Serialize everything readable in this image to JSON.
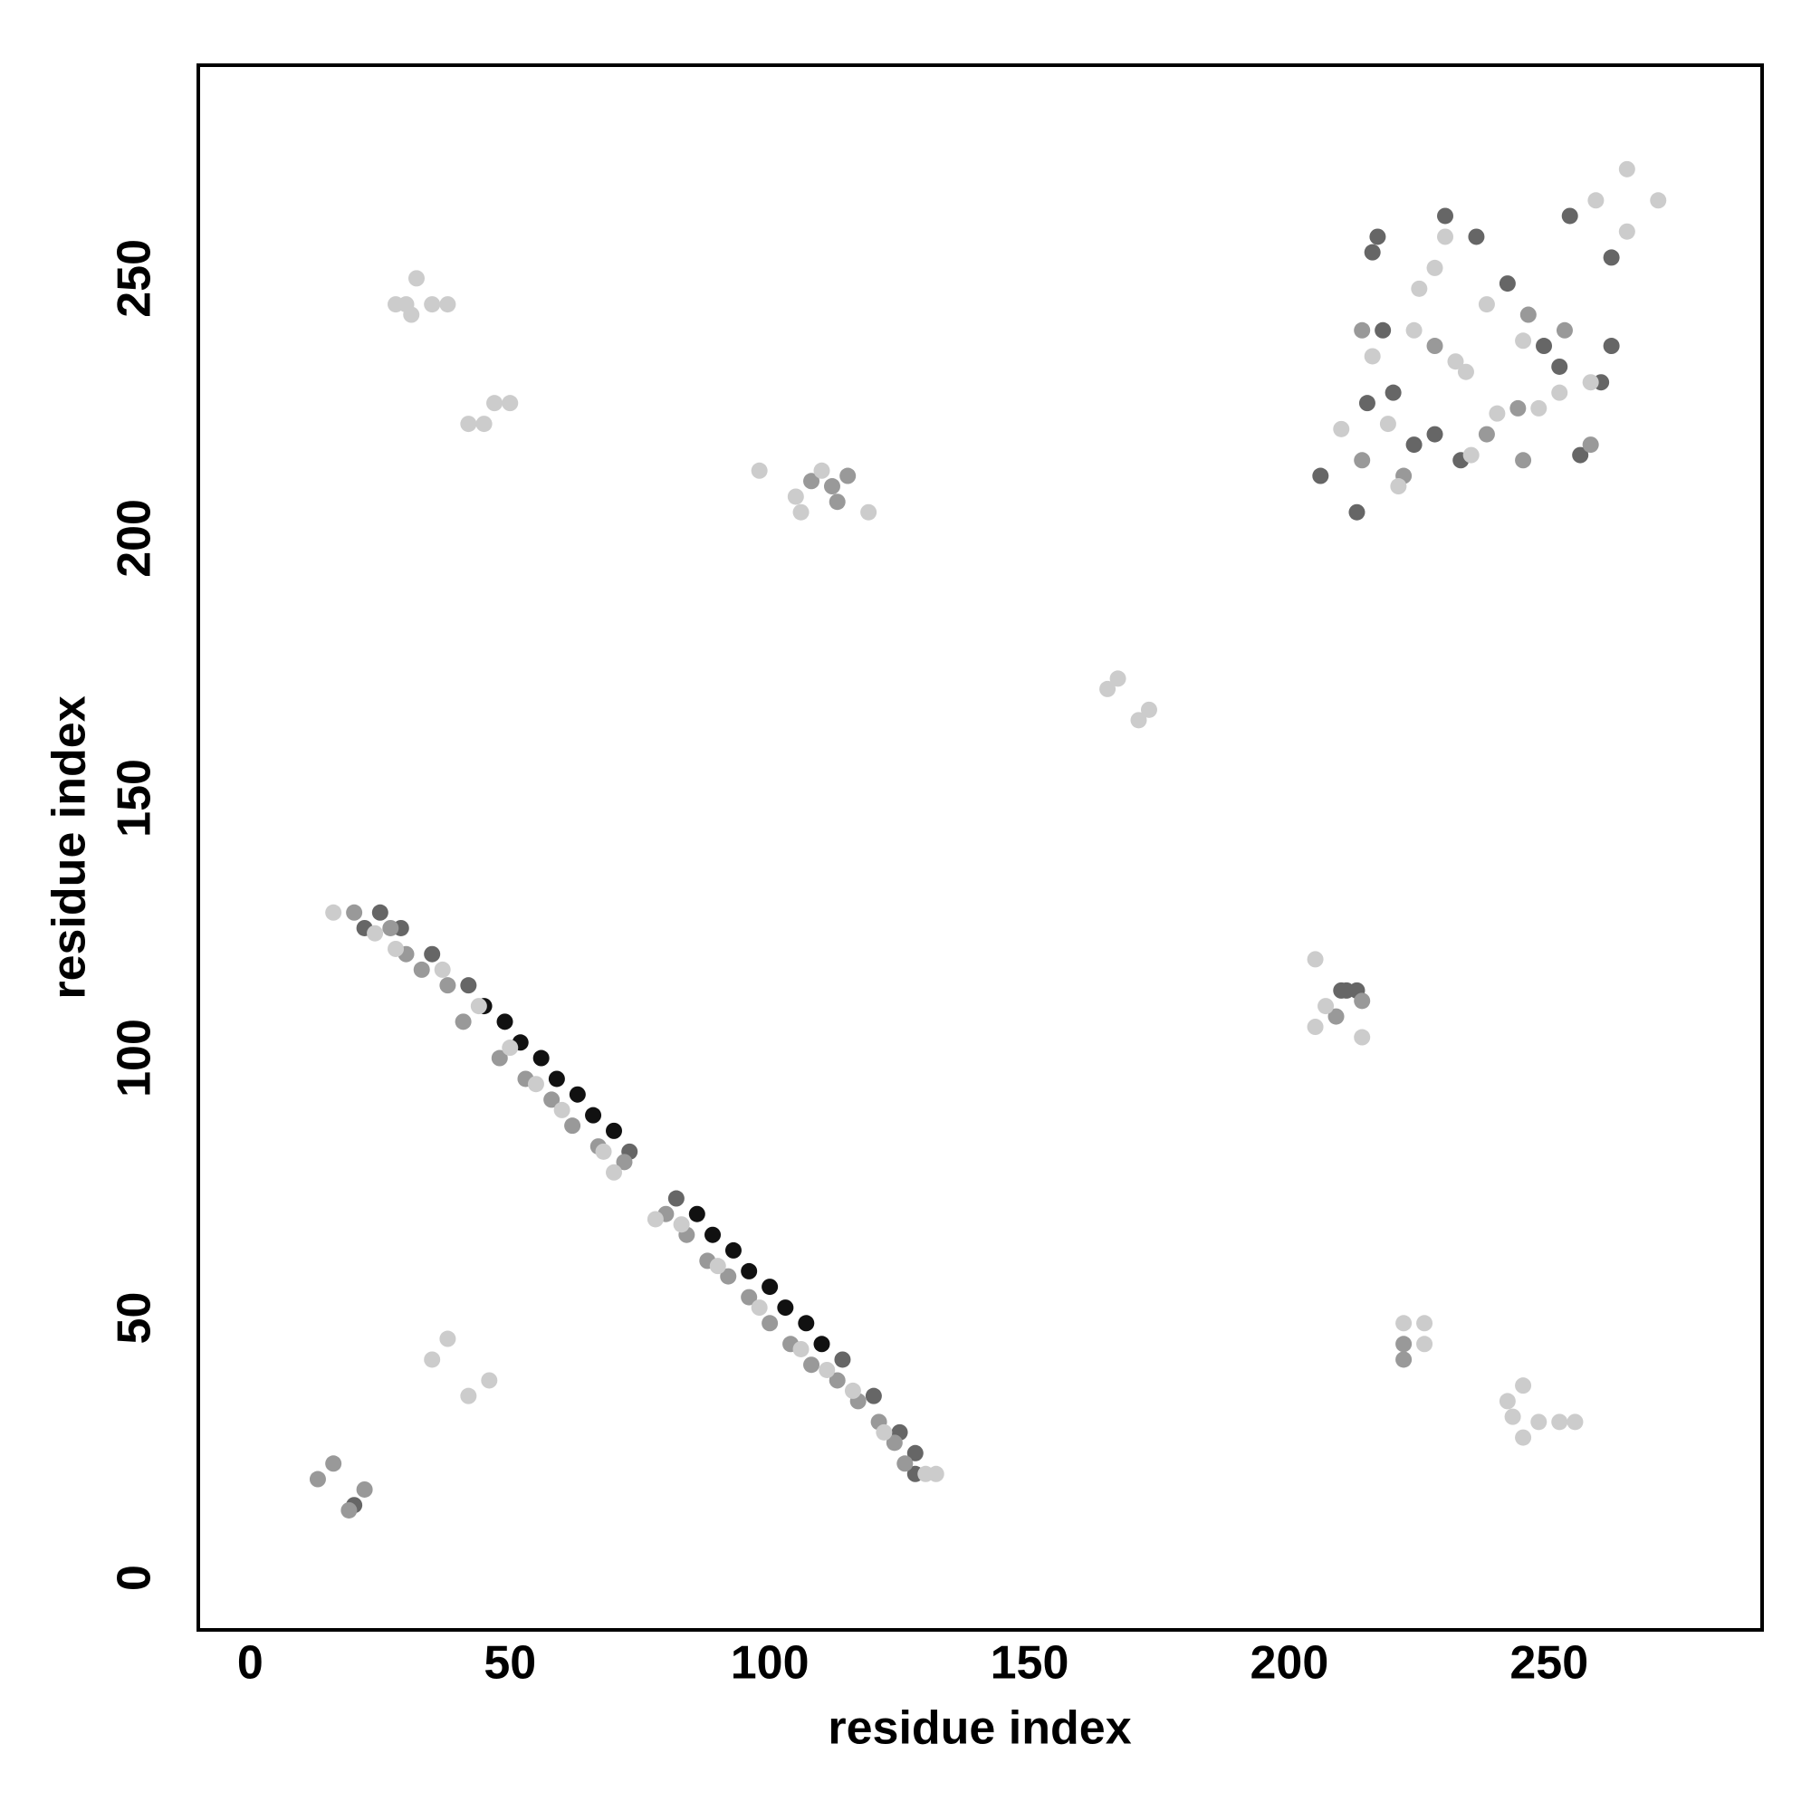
{
  "chart_data": {
    "type": "scatter",
    "xlabel": "residue index",
    "ylabel": "residue index",
    "xlim": [
      -10,
      291
    ],
    "ylim": [
      -10,
      291
    ],
    "xticks": [
      0,
      50,
      100,
      150,
      200,
      250
    ],
    "yticks": [
      0,
      50,
      100,
      150,
      200,
      250
    ],
    "grid": false,
    "series": [
      {
        "color": "#111111",
        "x": [
          45,
          49,
          52,
          56,
          59,
          63,
          66,
          70,
          86,
          89,
          93,
          96,
          100,
          103,
          107,
          110
        ],
        "y": [
          110,
          107,
          103,
          100,
          96,
          93,
          89,
          86,
          70,
          66,
          63,
          59,
          56,
          52,
          49,
          45
        ]
      },
      {
        "color": "#666666",
        "x": [
          254,
          262,
          22,
          25,
          29,
          35,
          42,
          73,
          82,
          114,
          120,
          125,
          128,
          128,
          216,
          217,
          213,
          230,
          236,
          242,
          218,
          215,
          220,
          224,
          228,
          233,
          249,
          252,
          256,
          260,
          262,
          206,
          210,
          211,
          213,
          20
        ],
        "y": [
          262,
          254,
          125,
          128,
          125,
          120,
          114,
          82,
          73,
          42,
          35,
          28,
          20,
          24,
          255,
          258,
          205,
          262,
          258,
          249,
          240,
          226,
          228,
          218,
          220,
          215,
          237,
          233,
          216,
          230,
          237,
          212,
          113,
          113,
          113,
          14
        ]
      },
      {
        "color": "#999999",
        "x": [
          20,
          27,
          30,
          33,
          38,
          41,
          48,
          53,
          58,
          62,
          67,
          72,
          80,
          84,
          88,
          92,
          96,
          100,
          104,
          108,
          113,
          117,
          121,
          124,
          126,
          112,
          115,
          108,
          113,
          214,
          214,
          222,
          228,
          238,
          244,
          245,
          246,
          253,
          258,
          222,
          222,
          13,
          16,
          19,
          22,
          209,
          214
        ],
        "y": [
          128,
          125,
          120,
          117,
          114,
          107,
          100,
          96,
          92,
          87,
          83,
          80,
          70,
          66,
          61,
          58,
          54,
          49,
          45,
          41,
          38,
          34,
          30,
          26,
          22,
          210,
          212,
          211,
          207,
          215,
          240,
          212,
          237,
          220,
          225,
          215,
          243,
          240,
          218,
          45,
          42,
          19,
          22,
          13,
          17,
          108,
          111
        ]
      },
      {
        "color": "#cccccc",
        "x": [
          30,
          32,
          35,
          31,
          38,
          28,
          42,
          45,
          47,
          50,
          98,
          106,
          110,
          119,
          105,
          35,
          38,
          42,
          46,
          165,
          167,
          171,
          173,
          205,
          205,
          214,
          207,
          222,
          226,
          226,
          242,
          245,
          245,
          248,
          252,
          255,
          243,
          16,
          24,
          28,
          37,
          44,
          50,
          55,
          60,
          68,
          70,
          78,
          83,
          90,
          98,
          106,
          111,
          116,
          122,
          130,
          132,
          265,
          271,
          259,
          265,
          245,
          238,
          225,
          248,
          221,
          210,
          230,
          258,
          224,
          240,
          234,
          232,
          228,
          252,
          219,
          235,
          216
        ],
        "y": [
          245,
          250,
          245,
          243,
          245,
          245,
          222,
          222,
          226,
          226,
          213,
          205,
          213,
          205,
          208,
          42,
          46,
          35,
          38,
          171,
          173,
          165,
          167,
          119,
          106,
          104,
          110,
          49,
          45,
          49,
          34,
          37,
          27,
          30,
          30,
          30,
          31,
          128,
          124,
          121,
          117,
          110,
          102,
          95,
          90,
          82,
          78,
          69,
          68,
          60,
          52,
          44,
          40,
          36,
          28,
          20,
          20,
          271,
          265,
          265,
          259,
          238,
          245,
          248,
          225,
          210,
          221,
          258,
          230,
          240,
          224,
          232,
          234,
          252,
          228,
          222,
          216,
          235
        ]
      }
    ]
  }
}
